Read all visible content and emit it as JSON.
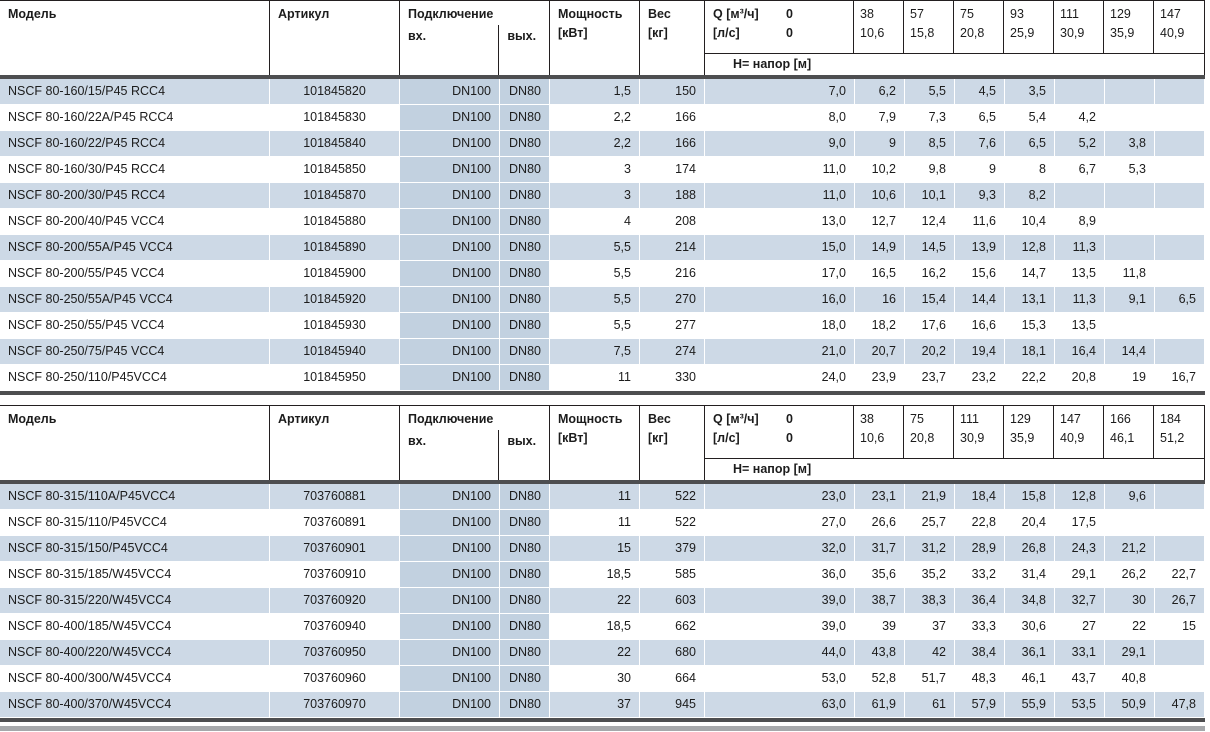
{
  "colors": {
    "row_blue": "#cdd9e6",
    "conn_tint": "#c2d1e0",
    "dark_bar": "#4d4e50",
    "light_bar": "#a6a8ab",
    "border": "#231f20"
  },
  "tables": [
    {
      "header": {
        "model": "Модель",
        "article": "Артикул",
        "connection": "Подключение",
        "inlet": "вх.",
        "outlet": "вых.",
        "power_line1": "Мощность",
        "power_line2": "[кВт]",
        "weight_line1": "Вес",
        "weight_line2": "[кг]",
        "q_label": "Q [м³/ч]",
        "q_zero": "0",
        "ls_label": "[л/с]",
        "ls_zero": "0",
        "head_row": "Н= напор [м]",
        "q_cols": [
          {
            "m3h": "38",
            "ls": "10,6"
          },
          {
            "m3h": "57",
            "ls": "15,8"
          },
          {
            "m3h": "75",
            "ls": "20,8"
          },
          {
            "m3h": "93",
            "ls": "25,9"
          },
          {
            "m3h": "111",
            "ls": "30,9"
          },
          {
            "m3h": "129",
            "ls": "35,9"
          },
          {
            "m3h": "147",
            "ls": "40,9"
          }
        ]
      },
      "rows": [
        {
          "model": "NSCF 80-160/15/P45 RCC4",
          "article": "101845820",
          "inlet": "DN100",
          "outlet": "DN80",
          "power": "1,5",
          "weight": "150",
          "h": [
            "7,0",
            "6,2",
            "5,5",
            "4,5",
            "3,5",
            "",
            "",
            ""
          ]
        },
        {
          "model": "NSCF 80-160/22A/P45 RCC4",
          "article": "101845830",
          "inlet": "DN100",
          "outlet": "DN80",
          "power": "2,2",
          "weight": "166",
          "h": [
            "8,0",
            "7,9",
            "7,3",
            "6,5",
            "5,4",
            "4,2",
            "",
            ""
          ]
        },
        {
          "model": "NSCF 80-160/22/P45 RCC4",
          "article": "101845840",
          "inlet": "DN100",
          "outlet": "DN80",
          "power": "2,2",
          "weight": "166",
          "h": [
            "9,0",
            "9",
            "8,5",
            "7,6",
            "6,5",
            "5,2",
            "3,8",
            ""
          ]
        },
        {
          "model": "NSCF 80-160/30/P45 RCC4",
          "article": "101845850",
          "inlet": "DN100",
          "outlet": "DN80",
          "power": "3",
          "weight": "174",
          "h": [
            "11,0",
            "10,2",
            "9,8",
            "9",
            "8",
            "6,7",
            "5,3",
            ""
          ]
        },
        {
          "model": "NSCF 80-200/30/P45 RCC4",
          "article": "101845870",
          "inlet": "DN100",
          "outlet": "DN80",
          "power": "3",
          "weight": "188",
          "h": [
            "11,0",
            "10,6",
            "10,1",
            "9,3",
            "8,2",
            "",
            "",
            ""
          ]
        },
        {
          "model": "NSCF 80-200/40/P45 VCC4",
          "article": "101845880",
          "inlet": "DN100",
          "outlet": "DN80",
          "power": "4",
          "weight": "208",
          "h": [
            "13,0",
            "12,7",
            "12,4",
            "11,6",
            "10,4",
            "8,9",
            "",
            ""
          ]
        },
        {
          "model": "NSCF 80-200/55A/P45 VCC4",
          "article": "101845890",
          "inlet": "DN100",
          "outlet": "DN80",
          "power": "5,5",
          "weight": "214",
          "h": [
            "15,0",
            "14,9",
            "14,5",
            "13,9",
            "12,8",
            "11,3",
            "",
            ""
          ]
        },
        {
          "model": "NSCF 80-200/55/P45 VCC4",
          "article": "101845900",
          "inlet": "DN100",
          "outlet": "DN80",
          "power": "5,5",
          "weight": "216",
          "h": [
            "17,0",
            "16,5",
            "16,2",
            "15,6",
            "14,7",
            "13,5",
            "11,8",
            ""
          ]
        },
        {
          "model": "NSCF 80-250/55A/P45 VCC4",
          "article": "101845920",
          "inlet": "DN100",
          "outlet": "DN80",
          "power": "5,5",
          "weight": "270",
          "h": [
            "16,0",
            "16",
            "15,4",
            "14,4",
            "13,1",
            "11,3",
            "9,1",
            "6,5"
          ]
        },
        {
          "model": "NSCF 80-250/55/P45 VCC4",
          "article": "101845930",
          "inlet": "DN100",
          "outlet": "DN80",
          "power": "5,5",
          "weight": "277",
          "h": [
            "18,0",
            "18,2",
            "17,6",
            "16,6",
            "15,3",
            "13,5",
            "",
            ""
          ]
        },
        {
          "model": "NSCF 80-250/75/P45 VCC4",
          "article": "101845940",
          "inlet": "DN100",
          "outlet": "DN80",
          "power": "7,5",
          "weight": "274",
          "h": [
            "21,0",
            "20,7",
            "20,2",
            "19,4",
            "18,1",
            "16,4",
            "14,4",
            ""
          ]
        },
        {
          "model": "NSCF 80-250/110/P45VCC4",
          "article": "101845950",
          "inlet": "DN100",
          "outlet": "DN80",
          "power": "11",
          "weight": "330",
          "h": [
            "24,0",
            "23,9",
            "23,7",
            "23,2",
            "22,2",
            "20,8",
            "19",
            "16,7"
          ]
        }
      ]
    },
    {
      "header": {
        "model": "Модель",
        "article": "Артикул",
        "connection": "Подключение",
        "inlet": "вх.",
        "outlet": "вых.",
        "power_line1": "Мощность",
        "power_line2": "[кВт]",
        "weight_line1": "Вес",
        "weight_line2": "[кг]",
        "q_label": "Q [м³/ч]",
        "q_zero": "0",
        "ls_label": "[л/с]",
        "ls_zero": "0",
        "head_row": "Н= напор [м]",
        "q_cols": [
          {
            "m3h": "38",
            "ls": "10,6"
          },
          {
            "m3h": "75",
            "ls": "20,8"
          },
          {
            "m3h": "111",
            "ls": "30,9"
          },
          {
            "m3h": "129",
            "ls": "35,9"
          },
          {
            "m3h": "147",
            "ls": "40,9"
          },
          {
            "m3h": "166",
            "ls": "46,1"
          },
          {
            "m3h": "184",
            "ls": "51,2"
          }
        ]
      },
      "rows": [
        {
          "model": "NSCF 80-315/110A/P45VCC4",
          "article": "703760881",
          "inlet": "DN100",
          "outlet": "DN80",
          "power": "11",
          "weight": "522",
          "h": [
            "23,0",
            "23,1",
            "21,9",
            "18,4",
            "15,8",
            "12,8",
            "9,6",
            ""
          ]
        },
        {
          "model": "NSCF 80-315/110/P45VCC4",
          "article": "703760891",
          "inlet": "DN100",
          "outlet": "DN80",
          "power": "11",
          "weight": "522",
          "h": [
            "27,0",
            "26,6",
            "25,7",
            "22,8",
            "20,4",
            "17,5",
            "",
            ""
          ]
        },
        {
          "model": "NSCF 80-315/150/P45VCC4",
          "article": "703760901",
          "inlet": "DN100",
          "outlet": "DN80",
          "power": "15",
          "weight": "379",
          "h": [
            "32,0",
            "31,7",
            "31,2",
            "28,9",
            "26,8",
            "24,3",
            "21,2",
            ""
          ]
        },
        {
          "model": "NSCF 80-315/185/W45VCC4",
          "article": "703760910",
          "inlet": "DN100",
          "outlet": "DN80",
          "power": "18,5",
          "weight": "585",
          "h": [
            "36,0",
            "35,6",
            "35,2",
            "33,2",
            "31,4",
            "29,1",
            "26,2",
            "22,7"
          ]
        },
        {
          "model": "NSCF 80-315/220/W45VCC4",
          "article": "703760920",
          "inlet": "DN100",
          "outlet": "DN80",
          "power": "22",
          "weight": "603",
          "h": [
            "39,0",
            "38,7",
            "38,3",
            "36,4",
            "34,8",
            "32,7",
            "30",
            "26,7"
          ]
        },
        {
          "model": "NSCF 80-400/185/W45VCC4",
          "article": "703760940",
          "inlet": "DN100",
          "outlet": "DN80",
          "power": "18,5",
          "weight": "662",
          "h": [
            "39,0",
            "39",
            "37",
            "33,3",
            "30,6",
            "27",
            "22",
            "15"
          ]
        },
        {
          "model": "NSCF 80-400/220/W45VCC4",
          "article": "703760950",
          "inlet": "DN100",
          "outlet": "DN80",
          "power": "22",
          "weight": "680",
          "h": [
            "44,0",
            "43,8",
            "42",
            "38,4",
            "36,1",
            "33,1",
            "29,1",
            ""
          ]
        },
        {
          "model": "NSCF 80-400/300/W45VCC4",
          "article": "703760960",
          "inlet": "DN100",
          "outlet": "DN80",
          "power": "30",
          "weight": "664",
          "h": [
            "53,0",
            "52,8",
            "51,7",
            "48,3",
            "46,1",
            "43,7",
            "40,8",
            ""
          ]
        },
        {
          "model": "NSCF 80-400/370/W45VCC4",
          "article": "703760970",
          "inlet": "DN100",
          "outlet": "DN80",
          "power": "37",
          "weight": "945",
          "h": [
            "63,0",
            "61,9",
            "61",
            "57,9",
            "55,9",
            "53,5",
            "50,9",
            "47,8"
          ]
        }
      ]
    }
  ]
}
